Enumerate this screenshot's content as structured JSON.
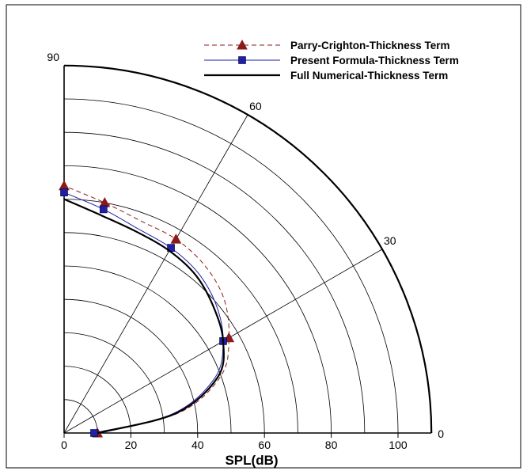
{
  "chart_data": {
    "type": "line",
    "subtype": "polar-quadrant",
    "xlabel": "SPL(dB)",
    "radial_range": [
      0,
      110
    ],
    "radial_ticks": [
      0,
      20,
      40,
      60,
      80,
      100
    ],
    "angular_range_deg": [
      0,
      90
    ],
    "angular_ticks": [
      0,
      30,
      60,
      90
    ],
    "ring_step": 10,
    "grid": true,
    "legend_position": "top-right",
    "series": [
      {
        "name": "Parry-Crighton-Thickness Term",
        "color": "#8b1a1a",
        "dash": "dashed",
        "marker": "triangle",
        "theta": [
          0,
          10,
          20,
          30,
          40,
          50,
          60,
          70,
          80,
          90
        ],
        "r": [
          10,
          35,
          50,
          57,
          62.5,
          65.5,
          67,
          67.5,
          70,
          74
        ],
        "markers": [
          [
            0,
            10
          ],
          [
            30,
            57
          ],
          [
            60,
            67
          ],
          [
            80,
            70
          ],
          [
            90,
            74
          ]
        ]
      },
      {
        "name": "Present Formula-Thickness Term",
        "color": "#1f1fa8",
        "dash": "solid",
        "marker": "square",
        "theta": [
          0,
          10,
          20,
          30,
          40,
          50,
          60,
          70,
          80,
          90
        ],
        "r": [
          9,
          33,
          48,
          55,
          59.5,
          62.5,
          64,
          65,
          68,
          72
        ],
        "markers": [
          [
            0,
            9
          ],
          [
            30,
            55
          ],
          [
            60,
            64
          ],
          [
            80,
            68
          ],
          [
            90,
            72
          ]
        ]
      },
      {
        "name": "Full Numerical-Thickness Term",
        "color": "#000000",
        "dash": "solid",
        "marker": "none",
        "theta": [
          0,
          10,
          20,
          30,
          40,
          50,
          60,
          70,
          80,
          90
        ],
        "r": [
          10,
          34,
          49,
          55,
          58.5,
          61.5,
          63,
          64,
          66,
          70
        ]
      }
    ]
  }
}
